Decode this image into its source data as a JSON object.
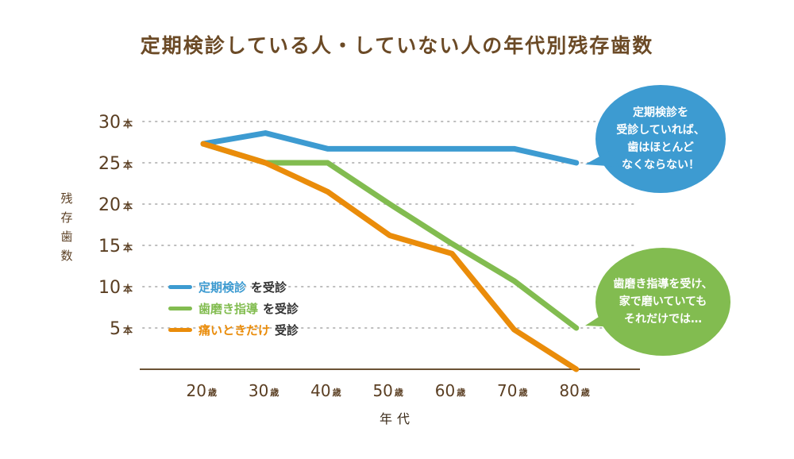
{
  "chart_data": {
    "type": "line",
    "title": "定期検診している人・していない人の年代別残存歯数",
    "xlabel": "年代",
    "ylabel": "残存歯数",
    "categories": [
      "20歳",
      "30歳",
      "40歳",
      "50歳",
      "60歳",
      "70歳",
      "80歳"
    ],
    "x_tick_numbers": [
      "20",
      "30",
      "40",
      "50",
      "60",
      "70",
      "80"
    ],
    "x_tick_unit": "歳",
    "y_ticks": [
      30,
      25,
      20,
      15,
      10,
      5
    ],
    "y_tick_unit": "本",
    "ylim": [
      0,
      30
    ],
    "grid": "horizontal-dotted",
    "legend_position": "bottom-left",
    "series": [
      {
        "name": "定期検診を受診",
        "label_main": "定期検診",
        "label_tail": "を受診",
        "color": "#3d9bd1",
        "values": [
          27.3,
          28.6,
          26.7,
          26.7,
          26.7,
          26.7,
          25.0
        ]
      },
      {
        "name": "歯磨き指導を受診",
        "label_main": "歯磨き指導",
        "label_tail": "を受診",
        "color": "#82bc50",
        "values": [
          27.3,
          25.0,
          25.0,
          20.0,
          15.2,
          10.7,
          5.0
        ]
      },
      {
        "name": "痛いときだけ受診",
        "label_main": "痛いときだけ",
        "label_tail": "受診",
        "color": "#ea8c0a",
        "values": [
          27.3,
          25.0,
          21.5,
          16.2,
          14.0,
          4.8,
          0.0
        ]
      }
    ],
    "annotations": [
      {
        "series": "定期検診を受診",
        "text": "定期検診を\n受診していれば、\n歯はほとんど\nなくならない！",
        "color": "#3d9bd1"
      },
      {
        "series": "歯磨き指導を受診",
        "text": "歯磨き指導を受け、\n家で磨いていても\nそれだけでは…",
        "color": "#82bc50"
      }
    ]
  }
}
